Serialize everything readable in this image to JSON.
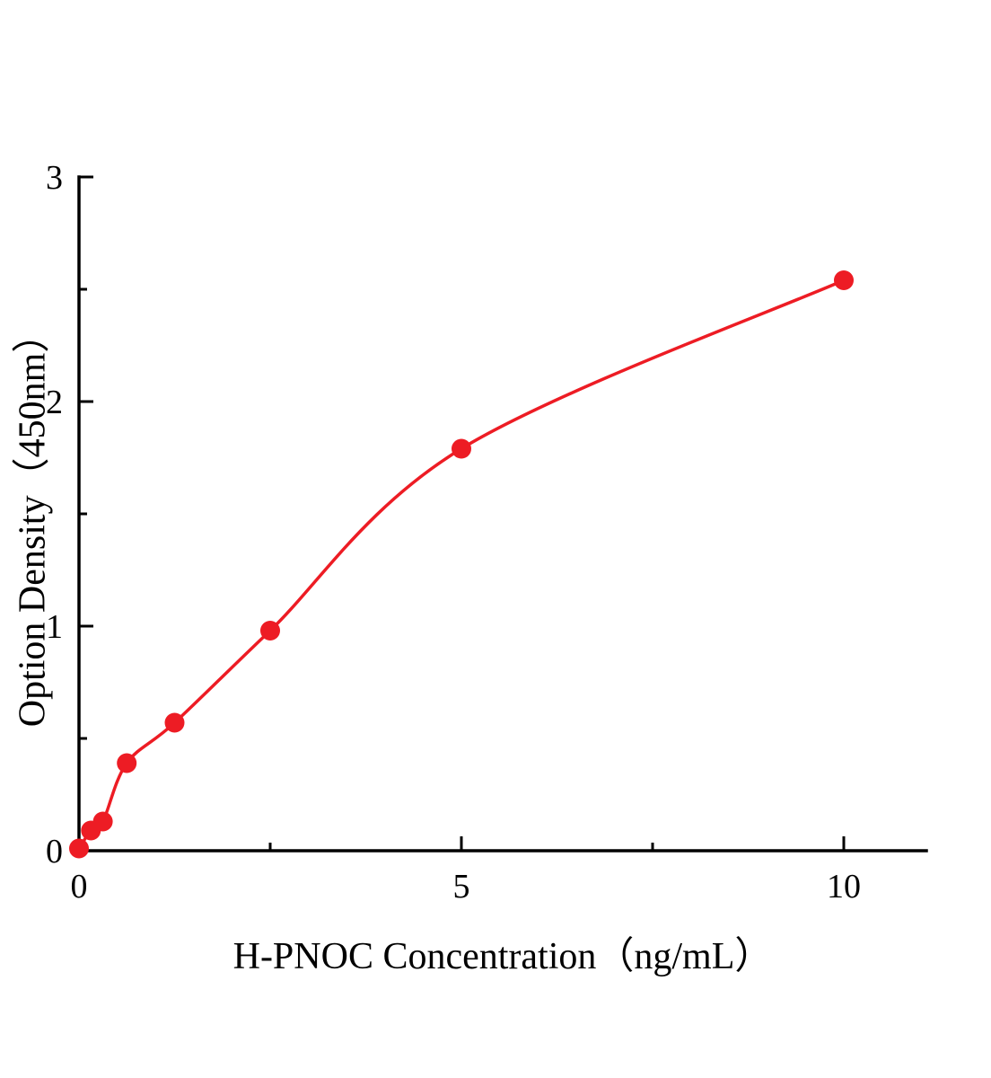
{
  "chart_data": {
    "type": "scatter",
    "title": "",
    "xlabel": "H-PNOC Concentration（ng/mL）",
    "ylabel": "Option Density（450nm）",
    "x": [
      0,
      0.156,
      0.3125,
      0.625,
      1.25,
      2.5,
      5,
      10
    ],
    "y": [
      0.01,
      0.09,
      0.13,
      0.39,
      0.57,
      0.98,
      1.79,
      2.54
    ],
    "xlim": [
      0,
      11.08
    ],
    "ylim": [
      0,
      3
    ],
    "x_major_ticks": [
      0,
      5,
      10
    ],
    "x_minor_ticks": [
      2.5,
      7.5
    ],
    "y_major_ticks": [
      0,
      1,
      2,
      3
    ],
    "y_minor_ticks": [
      0.5,
      1.5,
      2.5
    ],
    "point_color": "#ed1c24",
    "line_color": "#ed1c24",
    "axis_color": "#000000",
    "has_fit_line": true,
    "legend": null,
    "grid": false
  }
}
